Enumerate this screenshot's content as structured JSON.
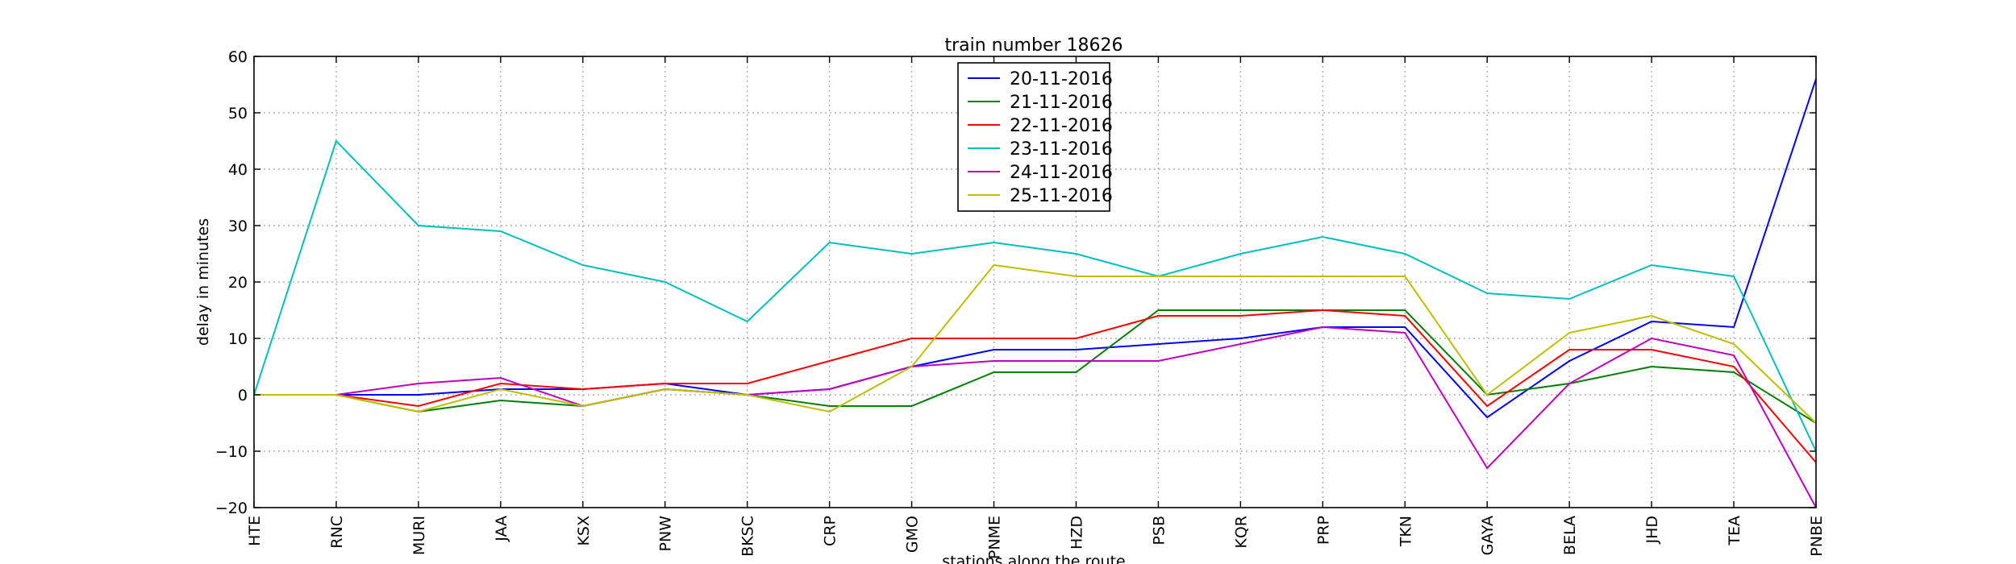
{
  "chart_data": {
    "type": "line",
    "title": "train number 18626",
    "xlabel": "stations along the route",
    "ylabel": "delay in minutes",
    "ylim": [
      -20,
      60
    ],
    "yticks": [
      "−20",
      "−10",
      "0",
      "10",
      "20",
      "30",
      "40",
      "50",
      "60"
    ],
    "grid": true,
    "legend_position": "top-center",
    "categories": [
      "HTE",
      "RNC",
      "MURI",
      "JAA",
      "KSX",
      "PNW",
      "BKSC",
      "CRP",
      "GMO",
      "PNME",
      "HZD",
      "PSB",
      "KQR",
      "PRP",
      "TKN",
      "GAYA",
      "BELA",
      "JHD",
      "TEA",
      "PNBE"
    ],
    "series": [
      {
        "name": "20-11-2016",
        "color": "#0000ff",
        "values": [
          0,
          0,
          0,
          1,
          1,
          2,
          0,
          1,
          5,
          8,
          8,
          9,
          10,
          12,
          12,
          -4,
          6,
          13,
          12,
          56
        ]
      },
      {
        "name": "21-11-2016",
        "color": "#008000",
        "values": [
          0,
          0,
          -3,
          -1,
          -2,
          1,
          0,
          -2,
          -2,
          4,
          4,
          15,
          15,
          15,
          15,
          0,
          2,
          5,
          4,
          -5
        ]
      },
      {
        "name": "22-11-2016",
        "color": "#ff0000",
        "values": [
          0,
          0,
          -2,
          2,
          1,
          2,
          2,
          6,
          10,
          10,
          10,
          14,
          14,
          15,
          14,
          -2,
          8,
          8,
          5,
          -12
        ]
      },
      {
        "name": "23-11-2016",
        "color": "#00bfbf",
        "values": [
          0,
          45,
          30,
          29,
          23,
          20,
          13,
          27,
          25,
          27,
          25,
          21,
          25,
          28,
          25,
          18,
          17,
          23,
          21,
          -10
        ]
      },
      {
        "name": "24-11-2016",
        "color": "#bf00bf",
        "values": [
          0,
          0,
          2,
          3,
          -2,
          1,
          0,
          1,
          5,
          6,
          6,
          6,
          9,
          12,
          11,
          -13,
          2,
          10,
          7,
          -20
        ]
      },
      {
        "name": "25-11-2016",
        "color": "#bfbf00",
        "values": [
          0,
          0,
          -3,
          1,
          -2,
          1,
          0,
          -3,
          5,
          23,
          21,
          21,
          21,
          21,
          21,
          0,
          11,
          14,
          9,
          -5
        ]
      }
    ]
  }
}
